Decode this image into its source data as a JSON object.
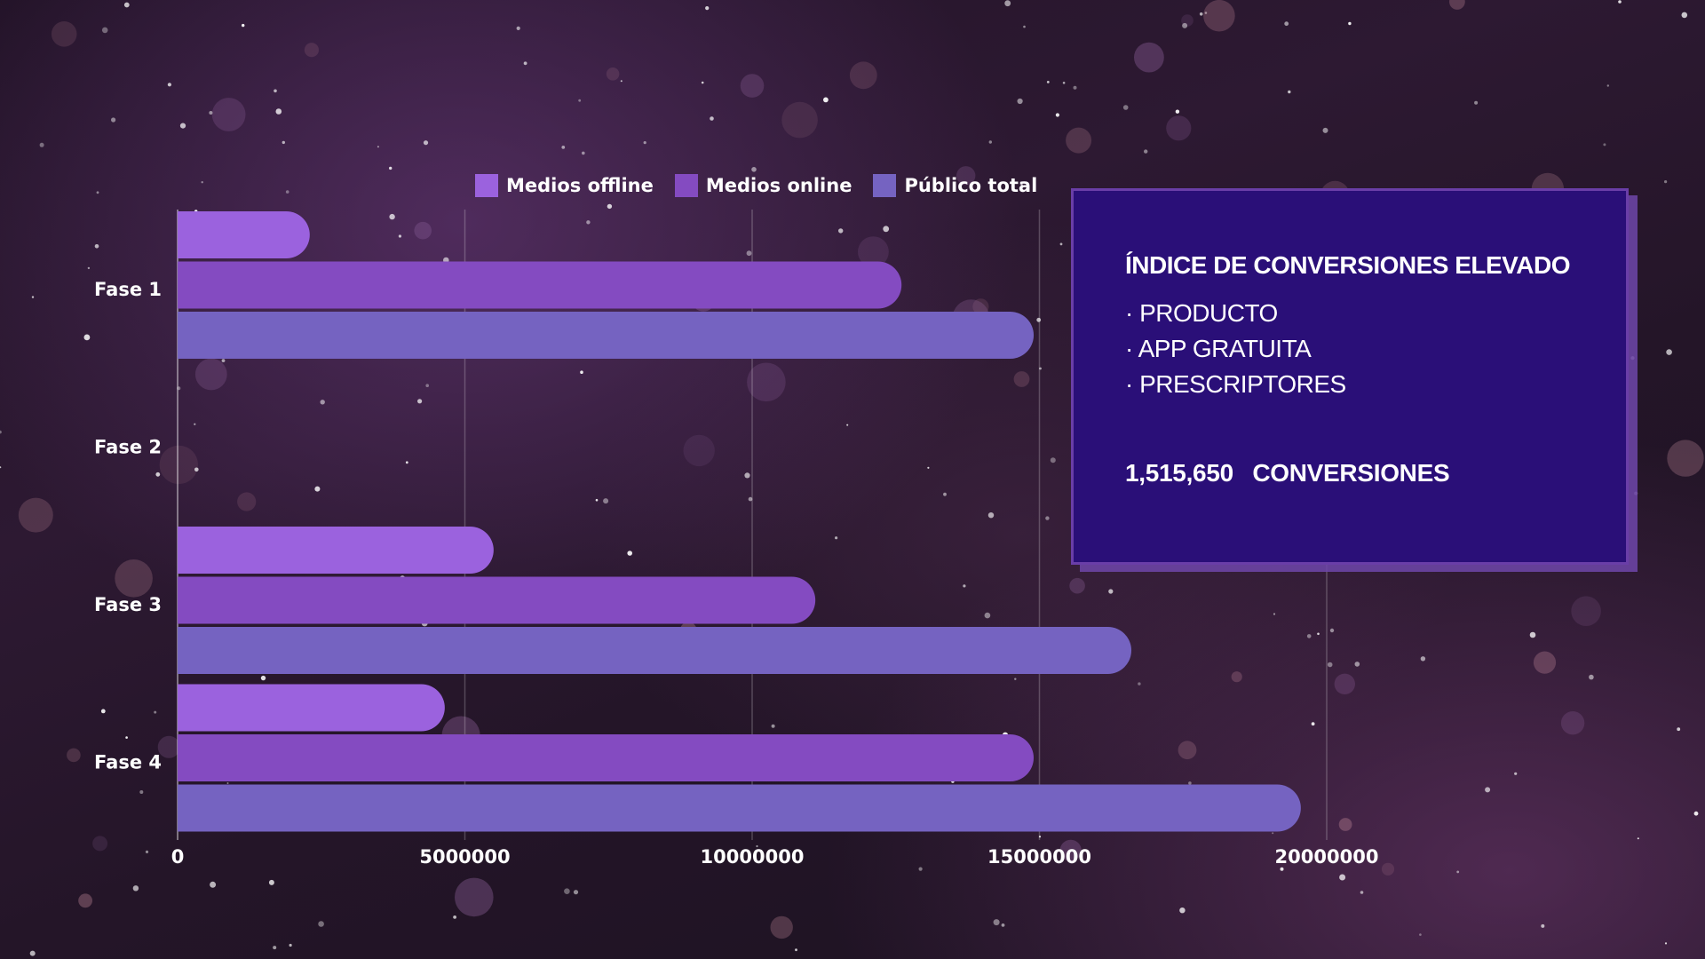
{
  "chart_data": {
    "type": "bar",
    "orientation": "horizontal",
    "categories": [
      "Fase 1",
      "Fase 2",
      "Fase 3",
      "Fase 4"
    ],
    "series": [
      {
        "name": "Medios offline",
        "color": "#9b62de",
        "values": [
          2300000,
          0,
          5500000,
          4650000
        ]
      },
      {
        "name": "Medios online",
        "color": "#844bc1",
        "values": [
          12600000,
          0,
          11100000,
          14900000
        ]
      },
      {
        "name": "Público total",
        "color": "#7563c1",
        "values": [
          14900000,
          0,
          16600000,
          19550000
        ]
      }
    ],
    "xlim": [
      0,
      20000000
    ],
    "x_ticks": [
      "0",
      "5000000",
      "10000000",
      "15000000",
      "20000000"
    ],
    "x_tick_values": [
      0,
      5000000,
      10000000,
      15000000,
      20000000
    ],
    "grid": "vertical",
    "legend_position": "top"
  },
  "info_box": {
    "title": "ÍNDICE DE CONVERSIONES ELEVADO",
    "items": [
      "PRODUCTO",
      "APP GRATUITA",
      "PRESCRIPTORES"
    ],
    "conversions_value": "1,515,650",
    "conversions_label": "CONVERSIONES",
    "background_color": "#2a0f78"
  }
}
